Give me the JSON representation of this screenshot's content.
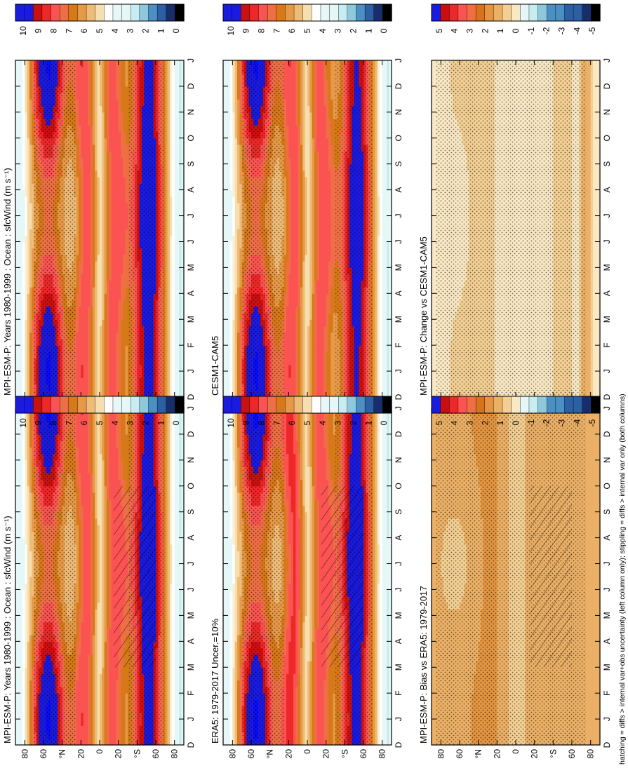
{
  "figure": {
    "footnote": "hatching = diffs > internal var+obs uncertainty (left column only); stippling = diffs > internal var only (both columns)"
  },
  "colorbars": {
    "abs": {
      "labels": [
        "10",
        "9",
        "8",
        "7",
        "6",
        "5",
        "4",
        "3",
        "2",
        "1",
        "0"
      ]
    },
    "diff": {
      "labels": [
        "5",
        "4",
        "3",
        "2",
        "1",
        "0",
        "-1",
        "-2",
        "-3",
        "-4",
        "-5"
      ]
    }
  },
  "chart_data": [
    {
      "type": "heatmap",
      "title": "MPI-ESM-P: Years 1980-1999 : Ocean : sfcWind (m s⁻¹)",
      "x_tick_labels": [
        "D",
        "J",
        "F",
        "M",
        "A",
        "M",
        "J",
        "J",
        "A",
        "S",
        "O",
        "N",
        "D",
        "J"
      ],
      "y_tick_labels": [
        "80",
        "60",
        "°N",
        "20",
        "0",
        "20",
        "°S",
        "60",
        "80"
      ],
      "y_tick_values": [
        80,
        60,
        40,
        20,
        0,
        -20,
        -40,
        -60,
        -80
      ],
      "colorbar": "abs",
      "z_range": [
        0,
        10
      ],
      "stippling": true,
      "hatching": true
    },
    {
      "type": "heatmap",
      "title": "MPI-ESM-P: Years 1980-1999 : Ocean : sfcWind (m s⁻¹)",
      "x_tick_labels": [
        "D",
        "J",
        "F",
        "M",
        "A",
        "M",
        "J",
        "J",
        "A",
        "S",
        "O",
        "N",
        "D",
        "J"
      ],
      "y_tick_labels": [
        "80",
        "60",
        "°N",
        "20",
        "0",
        "20",
        "°S",
        "60",
        "80"
      ],
      "y_tick_values": [
        80,
        60,
        40,
        20,
        0,
        -20,
        -40,
        -60,
        -80
      ],
      "colorbar": "abs",
      "z_range": [
        0,
        10
      ],
      "stippling": true,
      "hatching": false
    },
    {
      "type": "heatmap",
      "title": "ERA5: 1979-2017 Uncer.=10%",
      "x_tick_labels": [
        "D",
        "J",
        "F",
        "M",
        "A",
        "M",
        "J",
        "J",
        "A",
        "S",
        "O",
        "N",
        "D",
        "J"
      ],
      "y_tick_labels": [
        "80",
        "60",
        "°N",
        "20",
        "0",
        "20",
        "°S",
        "60",
        "80"
      ],
      "y_tick_values": [
        80,
        60,
        40,
        20,
        0,
        -20,
        -40,
        -60,
        -80
      ],
      "colorbar": "abs",
      "z_range": [
        0,
        10
      ],
      "stippling": true,
      "hatching": true
    },
    {
      "type": "heatmap",
      "title": "CESM1-CAM5",
      "x_tick_labels": [
        "D",
        "J",
        "F",
        "M",
        "A",
        "M",
        "J",
        "J",
        "A",
        "S",
        "O",
        "N",
        "D",
        "J"
      ],
      "y_tick_labels": [
        "80",
        "60",
        "°N",
        "20",
        "0",
        "20",
        "°S",
        "60",
        "80"
      ],
      "y_tick_values": [
        80,
        60,
        40,
        20,
        0,
        -20,
        -40,
        -60,
        -80
      ],
      "colorbar": "abs",
      "z_range": [
        0,
        10
      ],
      "stippling": true,
      "hatching": false
    },
    {
      "type": "heatmap",
      "title": "MPI-ESM-P: Bias vs ERA5: 1979-2017",
      "x_tick_labels": [
        "D",
        "J",
        "F",
        "M",
        "A",
        "M",
        "J",
        "J",
        "A",
        "S",
        "O",
        "N",
        "D",
        "J"
      ],
      "y_tick_labels": [
        "80",
        "60",
        "°N",
        "20",
        "0",
        "20",
        "°S",
        "60",
        "80"
      ],
      "y_tick_values": [
        80,
        60,
        40,
        20,
        0,
        -20,
        -40,
        -60,
        -80
      ],
      "colorbar": "diff",
      "z_range": [
        -5,
        5
      ],
      "stippling": true,
      "hatching": true
    },
    {
      "type": "heatmap",
      "title": "MPI-ESM-P: Change vs CESM1-CAM5",
      "x_tick_labels": [
        "D",
        "J",
        "F",
        "M",
        "A",
        "M",
        "J",
        "J",
        "A",
        "S",
        "O",
        "N",
        "D",
        "J"
      ],
      "y_tick_labels": [
        "80",
        "60",
        "°N",
        "20",
        "0",
        "20",
        "°S",
        "60",
        "80"
      ],
      "y_tick_values": [
        80,
        60,
        40,
        20,
        0,
        -20,
        -40,
        -60,
        -80
      ],
      "colorbar": "diff",
      "z_range": [
        -5,
        5
      ],
      "stippling": true,
      "hatching": false
    }
  ],
  "colors": {
    "abs_palette": [
      "#000000",
      "#1a2d6b",
      "#2c5fa3",
      "#4b8fc4",
      "#8ec9db",
      "#c7ecf2",
      "#f0fbfb",
      "#ffffff",
      "#f6e2b4",
      "#eebe7c",
      "#e39540",
      "#d4710e",
      "#f07a4a",
      "#fb5050",
      "#ee2323",
      "#c80f0f",
      "#8a0a0a",
      "#1414c8",
      "#0a0aff"
    ],
    "diff_palette": [
      "#000000",
      "#1a2d6b",
      "#2c5fa3",
      "#4b8fc4",
      "#8ec9db",
      "#c7ecf2",
      "#f0fbfb",
      "#ffffff",
      "#f6e2b4",
      "#eebe7c",
      "#e39540",
      "#d4710e",
      "#f07a4a",
      "#fb5050",
      "#ee2323",
      "#c80f0f",
      "#8a0a0a",
      "#1414c8",
      "#0a0aff"
    ]
  }
}
